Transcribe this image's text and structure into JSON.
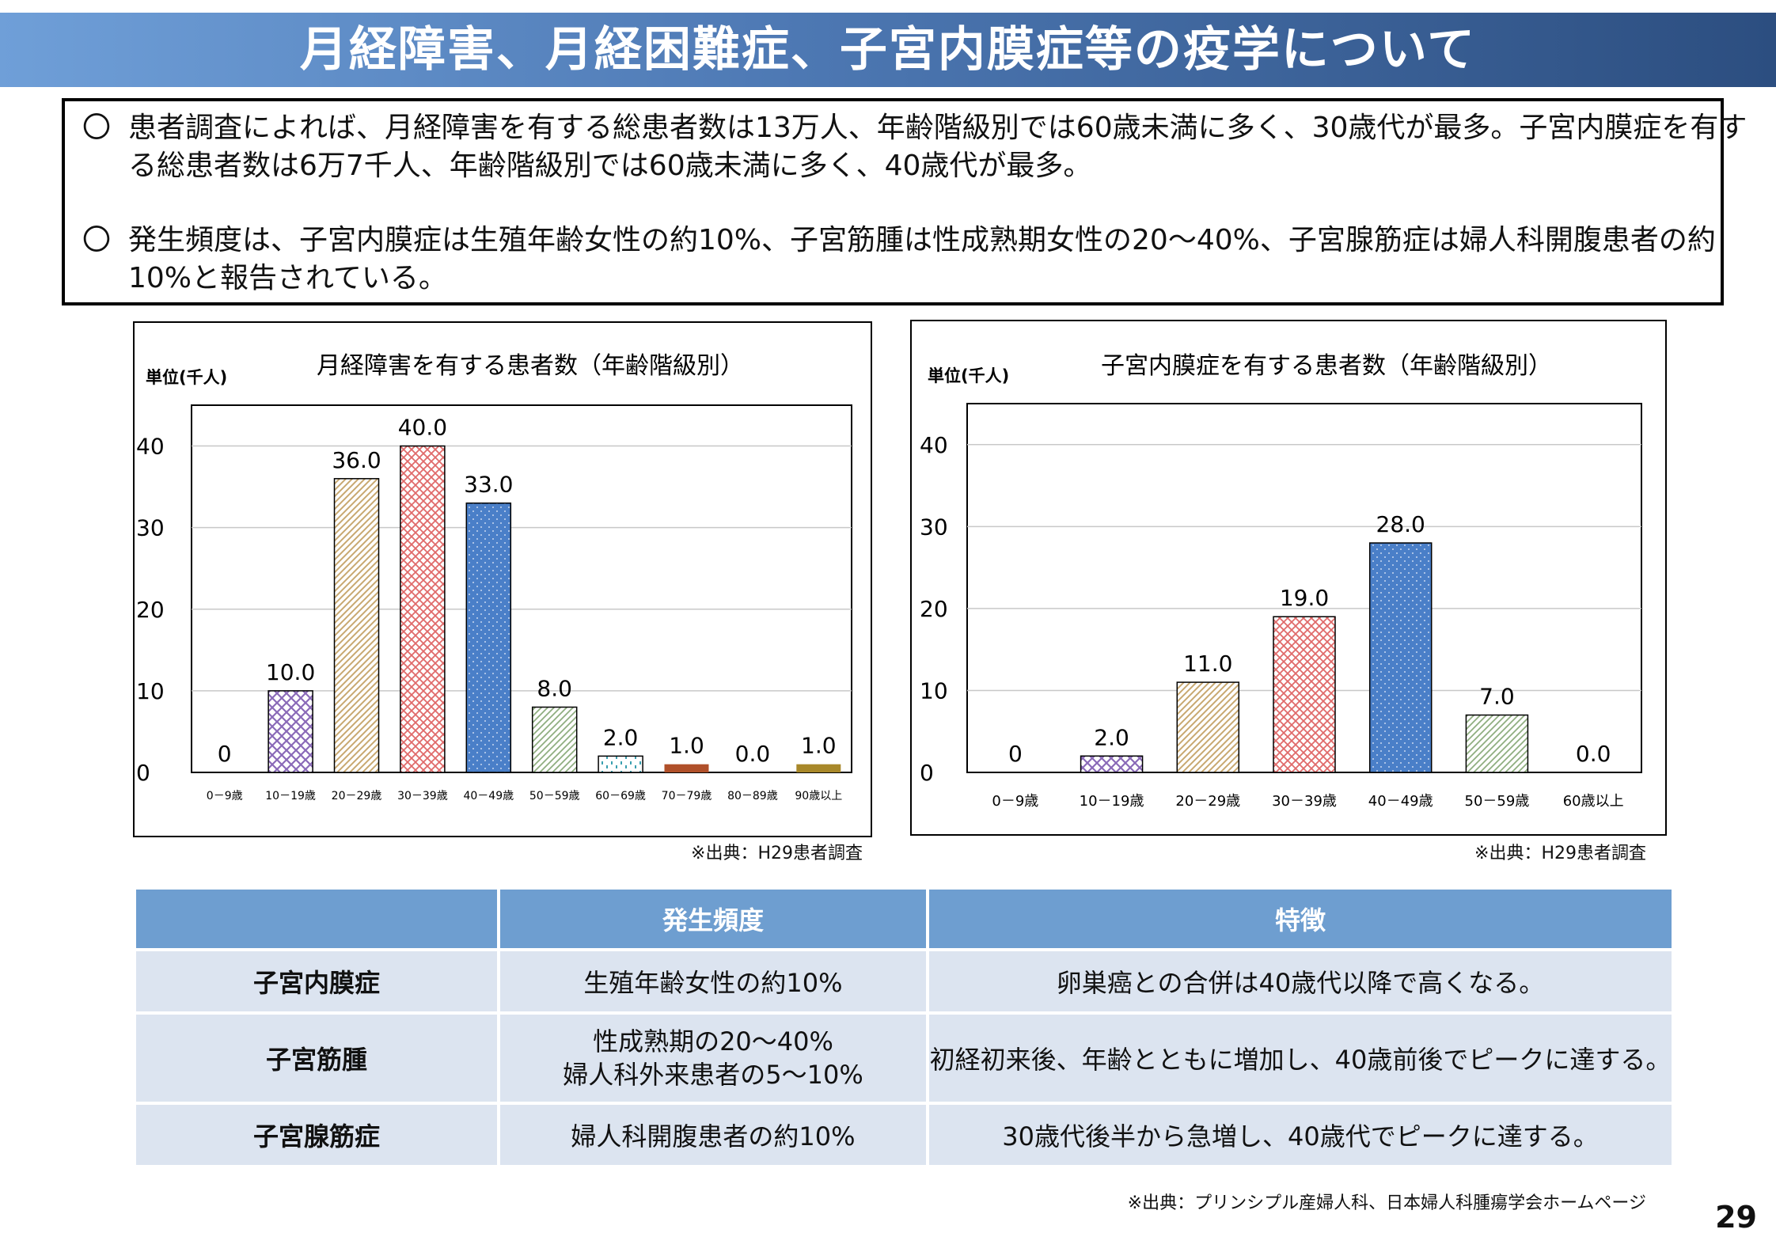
{
  "title": "月経障害、月経困難症、子宮内膜症等の疫学について",
  "summary": [
    {
      "mark": "〇",
      "text": "患者調査によれば、月経障害を有する総患者数は13万人、年齢階級別では60歳未満に多く、30歳代が最多。子宮内膜症を有する総患者数は6万7千人、年齢階級別では60歳未満に多く、40歳代が最多。"
    },
    {
      "mark": "〇",
      "text": "発生頻度は、子宮内膜症は生殖年齢女性の約10%、子宮筋腫は性成熟期女性の20～40%、子宮腺筋症は婦人科開腹患者の約10%と報告されている。"
    }
  ],
  "chart_data": [
    {
      "type": "bar",
      "title": "月経障害を有する患者数（年齢階級別）",
      "unit": "単位(千人)",
      "categories": [
        "0－9歳",
        "10－19歳",
        "20－29歳",
        "30－39歳",
        "40－49歳",
        "50－59歳",
        "60－69歳",
        "70－79歳",
        "80－89歳",
        "90歳以上"
      ],
      "values": [
        0,
        10.0,
        36.0,
        40.0,
        33.0,
        8.0,
        2.0,
        1.0,
        0.0,
        1.0
      ],
      "data_labels": [
        "0",
        "10.0",
        "36.0",
        "40.0",
        "33.0",
        "8.0",
        "2.0",
        "1.0",
        "0.0",
        "1.0"
      ],
      "ylim": [
        0,
        45
      ],
      "yticks": [
        0,
        10,
        20,
        30,
        40
      ],
      "grid": true,
      "bar_styles": [
        "none",
        "lattice-purple",
        "hatch-tan",
        "cross-red",
        "dots-blue",
        "hatch-green",
        "dots-teal",
        "solid-rust",
        "none",
        "solid-olive"
      ],
      "source": "※出典：H29患者調査"
    },
    {
      "type": "bar",
      "title": "子宮内膜症を有する患者数（年齢階級別）",
      "unit": "単位(千人)",
      "categories": [
        "0－9歳",
        "10－19歳",
        "20－29歳",
        "30－39歳",
        "40－49歳",
        "50－59歳",
        "60歳以上"
      ],
      "values": [
        0,
        2.0,
        11.0,
        19.0,
        28.0,
        7.0,
        0.0
      ],
      "data_labels": [
        "0",
        "2.0",
        "11.0",
        "19.0",
        "28.0",
        "7.0",
        "0.0"
      ],
      "ylim": [
        0,
        45
      ],
      "yticks": [
        0,
        10,
        20,
        30,
        40
      ],
      "grid": true,
      "bar_styles": [
        "none",
        "lattice-purple",
        "hatch-tan",
        "cross-red",
        "dots-blue",
        "hatch-green",
        "none"
      ],
      "source": "※出典：H29患者調査"
    }
  ],
  "table": {
    "headers": [
      "",
      "発生頻度",
      "特徴"
    ],
    "rows": [
      {
        "name": "子宮内膜症",
        "freq": [
          "生殖年齢女性の約10%"
        ],
        "feature": "卵巣癌との合併は40歳代以降で高くなる。"
      },
      {
        "name": "子宮筋腫",
        "freq": [
          "性成熟期の20～40%",
          "婦人科外来患者の5～10%"
        ],
        "feature": "初経初来後、年齢とともに増加し、40歳前後でピークに達する。"
      },
      {
        "name": "子宮腺筋症",
        "freq": [
          "婦人科開腹患者の約10%"
        ],
        "feature": "30歳代後半から急増し、40歳代でピークに達する。"
      }
    ],
    "source": "※出典：プリンシプル産婦人科、日本婦人科腫瘍学会ホームページ"
  },
  "page_number": "29"
}
